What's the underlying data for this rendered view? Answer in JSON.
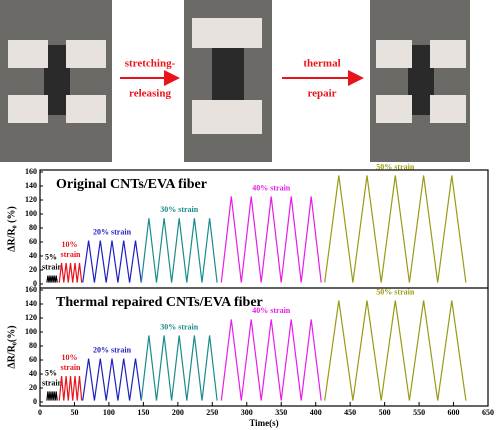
{
  "arrows": [
    {
      "top": "stretching-",
      "bottom": "releasing"
    },
    {
      "top": "thermal",
      "bottom": "repair"
    }
  ],
  "chart_data": [
    {
      "type": "line",
      "title": "Original CNTs/EVA fiber",
      "ylabel": "ΔR/R₀ (%)",
      "xlim": [
        0,
        650
      ],
      "ylim": [
        0,
        160
      ],
      "yticks": [
        0,
        20,
        40,
        60,
        80,
        100,
        120,
        140,
        160
      ],
      "series": [
        {
          "name": "5% strain",
          "color": "#000000",
          "x": [
            10,
            11.5,
            13,
            14.5,
            16,
            17.5,
            19,
            20.5,
            22,
            23.5,
            25
          ],
          "values": [
            2,
            12,
            2,
            12,
            2,
            12,
            2,
            12,
            2,
            12,
            2
          ]
        },
        {
          "name": "10% strain",
          "color": "#e8141c",
          "x": [
            28,
            31.3,
            34.5,
            37.8,
            41,
            44.3,
            47.5,
            50.8,
            54,
            57.3,
            60.5
          ],
          "values": [
            2,
            30,
            2,
            30,
            2,
            30,
            2,
            30,
            2,
            30,
            2
          ]
        },
        {
          "name": "20% strain",
          "color": "#1f1fbf",
          "x": [
            62,
            70.5,
            79,
            87.5,
            96,
            104.5,
            113,
            121.5,
            130,
            138.5,
            147
          ],
          "values": [
            2,
            62,
            2,
            62,
            2,
            62,
            2,
            62,
            2,
            62,
            2
          ]
        },
        {
          "name": "30% strain",
          "color": "#1a8c8c",
          "x": [
            147,
            158,
            169,
            180,
            191,
            202,
            213,
            224,
            235,
            246,
            257
          ],
          "values": [
            2,
            94,
            2,
            94,
            2,
            94,
            2,
            94,
            2,
            94,
            2
          ]
        },
        {
          "name": "40% strain",
          "color": "#e81ee8",
          "x": [
            263,
            277.5,
            292,
            306.5,
            321,
            335.5,
            350,
            364.5,
            379,
            393.5,
            408
          ],
          "values": [
            2,
            125,
            2,
            125,
            2,
            125,
            2,
            125,
            2,
            125,
            2
          ]
        },
        {
          "name": "50% strain",
          "color": "#9a9a16",
          "x": [
            413,
            433.5,
            454,
            474.5,
            495,
            515.5,
            536,
            556.5,
            577,
            597.5,
            618
          ],
          "values": [
            2,
            155,
            2,
            155,
            2,
            155,
            2,
            155,
            2,
            155,
            2
          ]
        }
      ]
    },
    {
      "type": "line",
      "title": "Thermal repaired CNTs/EVA fiber",
      "ylabel": "ΔR/R₀(%)",
      "xlabel": "Time(s)",
      "xlim": [
        0,
        650
      ],
      "xticks": [
        0,
        50,
        100,
        150,
        200,
        250,
        300,
        350,
        400,
        450,
        500,
        550,
        600,
        650
      ],
      "ylim": [
        0,
        160
      ],
      "yticks": [
        0,
        20,
        40,
        60,
        80,
        100,
        120,
        140,
        160
      ],
      "series": [
        {
          "name": "5% strain",
          "color": "#000000",
          "x": [
            10,
            11.5,
            13,
            14.5,
            16,
            17.5,
            19,
            20.5,
            22,
            23.5,
            25
          ],
          "values": [
            2,
            15,
            2,
            15,
            2,
            15,
            2,
            15,
            2,
            15,
            2
          ]
        },
        {
          "name": "10% strain",
          "color": "#e8141c",
          "x": [
            28,
            31.3,
            34.5,
            37.8,
            41,
            44.3,
            47.5,
            50.8,
            54,
            57.3,
            60.5
          ],
          "values": [
            2,
            37,
            2,
            37,
            2,
            37,
            2,
            37,
            2,
            37,
            2
          ]
        },
        {
          "name": "20% strain",
          "color": "#1f1fbf",
          "x": [
            62,
            70.5,
            79,
            87.5,
            96,
            104.5,
            113,
            121.5,
            130,
            138.5,
            147
          ],
          "values": [
            2,
            62,
            2,
            62,
            2,
            62,
            2,
            62,
            2,
            62,
            2
          ]
        },
        {
          "name": "30% strain",
          "color": "#1a8c8c",
          "x": [
            147,
            158,
            169,
            180,
            191,
            202,
            213,
            224,
            235,
            246,
            257
          ],
          "values": [
            2,
            95,
            2,
            95,
            2,
            95,
            2,
            95,
            2,
            95,
            2
          ]
        },
        {
          "name": "40% strain",
          "color": "#e81ee8",
          "x": [
            263,
            277.5,
            292,
            306.5,
            321,
            335.5,
            350,
            364.5,
            379,
            393.5,
            408
          ],
          "values": [
            2,
            118,
            2,
            118,
            2,
            118,
            2,
            118,
            2,
            118,
            2
          ]
        },
        {
          "name": "50% strain",
          "color": "#9a9a16",
          "x": [
            413,
            433.5,
            454,
            474.5,
            495,
            515.5,
            536,
            556.5,
            577,
            597.5,
            618
          ],
          "values": [
            2,
            145,
            2,
            145,
            2,
            145,
            2,
            145,
            2,
            145,
            2
          ]
        }
      ]
    }
  ]
}
